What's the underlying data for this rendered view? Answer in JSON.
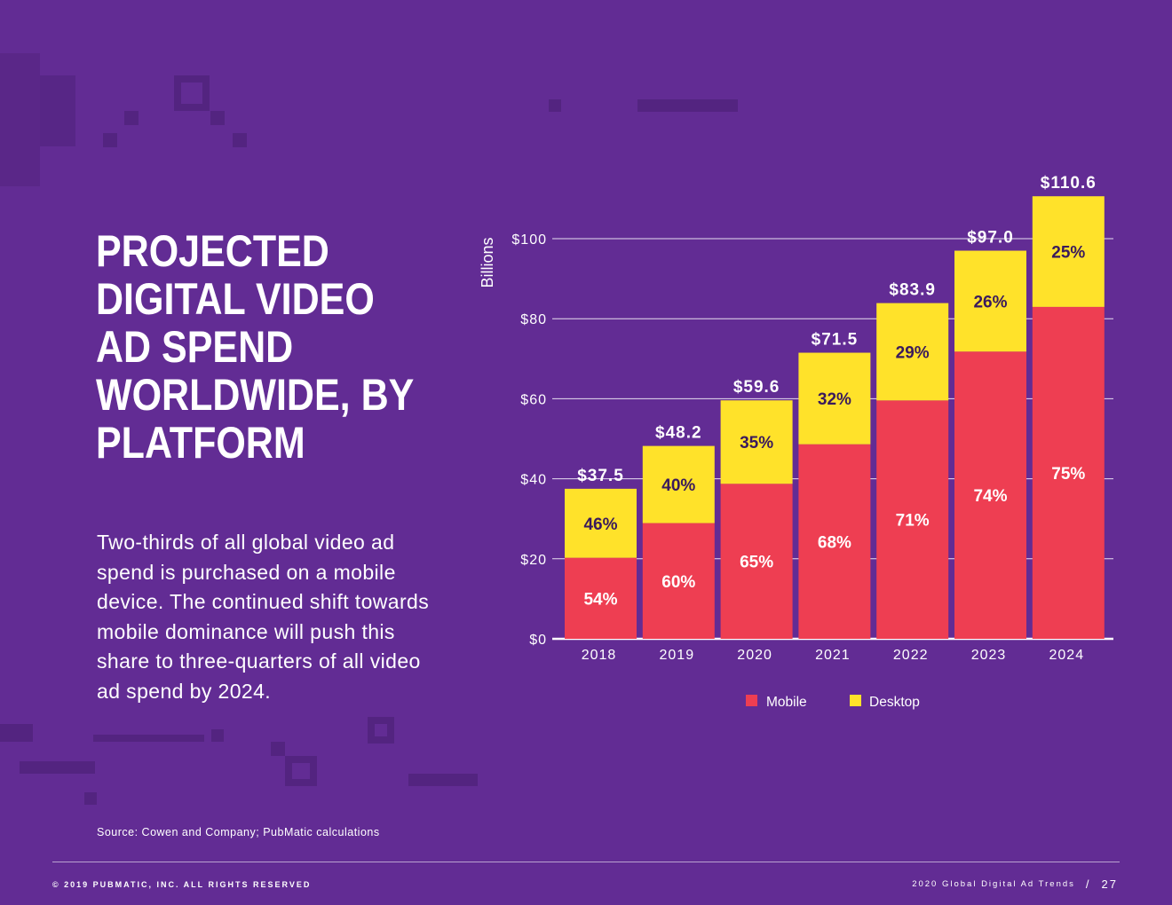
{
  "title": "Projected Digital Video Ad Spend Worldwide, By Platform",
  "description": "Two-thirds of all global video ad spend is purchased on a mobile device. The continued shift towards mobile dominance will push this share to three-quarters of all video ad spend by 2024.",
  "source": "Source: Cowen and Company; PubMatic calculations",
  "footer": {
    "copyright": "© 2019 PubMatic, Inc. All rights reserved",
    "report": "2020 Global Digital Ad Trends",
    "separator": "/",
    "page": "27"
  },
  "colors": {
    "background": "#622c94",
    "mobile": "#ee3e52",
    "desktop": "#ffe22a"
  },
  "chart_data": {
    "type": "bar",
    "stacked": true,
    "categories": [
      "2018",
      "2019",
      "2020",
      "2021",
      "2022",
      "2023",
      "2024"
    ],
    "totals": [
      37.5,
      48.2,
      59.6,
      71.5,
      83.9,
      97.0,
      110.6
    ],
    "total_labels": [
      "$37.5",
      "$48.2",
      "$59.6",
      "$71.5",
      "$83.9",
      "$97.0",
      "$110.6"
    ],
    "series": [
      {
        "name": "Mobile",
        "color": "#ee3e52",
        "share_pct": [
          54,
          60,
          65,
          68,
          71,
          74,
          75
        ],
        "labels": [
          "54%",
          "60%",
          "65%",
          "68%",
          "71%",
          "74%",
          "75%"
        ]
      },
      {
        "name": "Desktop",
        "color": "#ffe22a",
        "share_pct": [
          46,
          40,
          35,
          32,
          29,
          26,
          25
        ],
        "labels": [
          "46%",
          "40%",
          "35%",
          "32%",
          "29%",
          "26%",
          "25%"
        ]
      }
    ],
    "ylabel": "Billions",
    "ylim": [
      0,
      100
    ],
    "yticks": [
      0,
      20,
      40,
      60,
      80,
      100
    ],
    "ytick_labels": [
      "$0",
      "$20",
      "$40",
      "$60",
      "$80",
      "$100"
    ],
    "grid": true,
    "legend": "bottom-center"
  }
}
